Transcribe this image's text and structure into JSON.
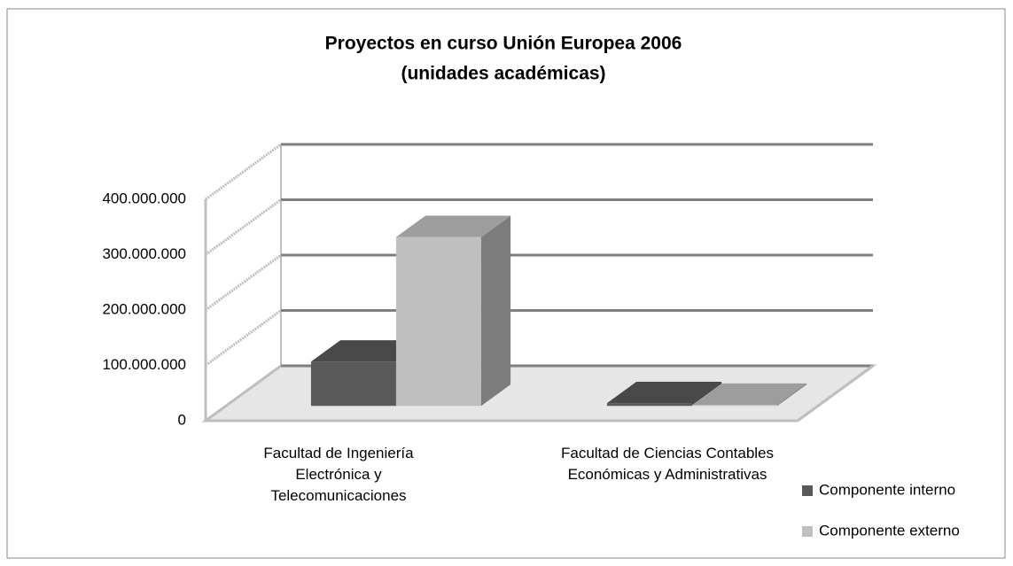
{
  "chart_data": {
    "type": "bar3d",
    "title": "Proyectos en curso Unión Europea 2006",
    "subtitle": "(unidades académicas)",
    "categories": [
      "Facultad de Ingeniería Electrónica y Telecomunicaciones",
      "Facultad de Ciencias Contables Económicas y Administrativas"
    ],
    "series": [
      {
        "name": "Componente interno",
        "color": "#595959",
        "values": [
          80000000,
          5000000
        ]
      },
      {
        "name": "Componente externo",
        "color": "#bfbfbf",
        "values": [
          305000000,
          2000000
        ]
      }
    ],
    "ylim": [
      0,
      400000000
    ],
    "yticks": [
      {
        "value": 0,
        "label": "0"
      },
      {
        "value": 100000000,
        "label": "100.000.000"
      },
      {
        "value": 200000000,
        "label": "200.000.000"
      },
      {
        "value": 300000000,
        "label": "300.000.000"
      },
      {
        "value": 400000000,
        "label": "400.000.000"
      }
    ],
    "grid": true,
    "legend": "right"
  }
}
